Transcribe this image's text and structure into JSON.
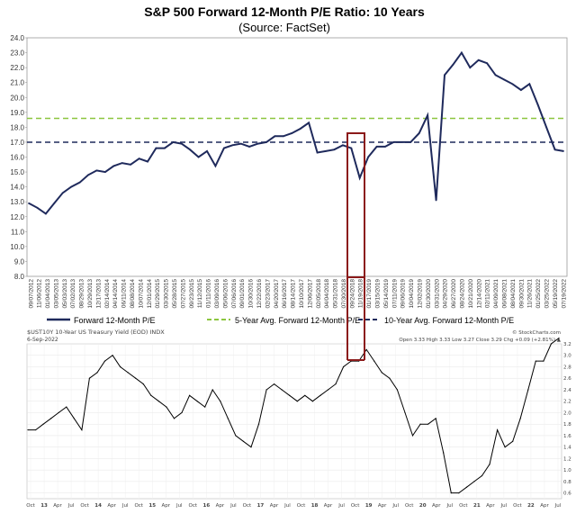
{
  "chart_data": [
    {
      "type": "line",
      "title": "S&P 500 Forward 12-Month P/E Ratio: 10 Years",
      "subtitle": "(Source: FactSet)",
      "ylim": [
        8.0,
        24.0
      ],
      "y_ticks": [
        "24.0",
        "23.0",
        "22.0",
        "21.0",
        "20.0",
        "19.0",
        "18.0",
        "17.0",
        "16.0",
        "15.0",
        "14.0",
        "13.0",
        "12.0",
        "11.0",
        "10.0",
        "9.0",
        "8.0"
      ],
      "x_ticks": [
        "09/07/2012",
        "11/06/2012",
        "01/04/2013",
        "03/05/2013",
        "05/03/2013",
        "07/02/2013",
        "08/29/2013",
        "10/29/2013",
        "12/17/2013",
        "02/14/2014",
        "04/14/2014",
        "06/11/2014",
        "08/08/2014",
        "10/07/2014",
        "12/01/2014",
        "01/29/2015",
        "03/30/2015",
        "05/28/2015",
        "07/27/2015",
        "09/23/2015",
        "11/12/2015",
        "01/11/2016",
        "03/09/2016",
        "05/06/2016",
        "07/06/2016",
        "09/01/2016",
        "10/30/2016",
        "12/22/2016",
        "02/23/2017",
        "04/20/2017",
        "06/16/2017",
        "08/14/2017",
        "10/10/2017",
        "12/06/2017",
        "02/05/2018",
        "04/04/2018",
        "05/31/2018",
        "07/30/2018",
        "09/24/2018",
        "11/19/2018",
        "01/17/2019",
        "03/15/2019",
        "05/14/2019",
        "07/11/2019",
        "09/06/2019",
        "10/04/2019",
        "12/02/2019",
        "01/30/2020",
        "03/31/2020",
        "04/29/2020",
        "06/27/2020",
        "08/24/2020",
        "10/21/2020",
        "12/14/2020",
        "02/11/2021",
        "04/09/2021",
        "06/08/2021",
        "08/04/2021",
        "09/30/2021",
        "11/26/2021",
        "01/25/2022",
        "03/25/2022",
        "05/19/2022",
        "07/19/2022"
      ],
      "series": [
        {
          "name": "Forward 12-Month P/E",
          "color": "#1f2a5c",
          "values": [
            12.9,
            12.6,
            12.2,
            12.9,
            13.6,
            14.0,
            14.3,
            14.8,
            15.1,
            15.0,
            15.4,
            15.6,
            15.5,
            15.9,
            15.7,
            16.6,
            16.6,
            17.0,
            16.9,
            16.5,
            16.0,
            16.4,
            15.4,
            16.6,
            16.8,
            16.9,
            16.7,
            16.9,
            17.0,
            17.4,
            17.4,
            17.6,
            17.9,
            18.3,
            16.3,
            16.4,
            16.5,
            16.8,
            16.6,
            14.6,
            16.0,
            16.7,
            16.7,
            17.0,
            17.0,
            17.0,
            17.6,
            18.8,
            13.1,
            21.5,
            22.2,
            23.0,
            22.0,
            22.5,
            22.3,
            21.5,
            21.2,
            20.9,
            20.5,
            20.9,
            19.5,
            18.0,
            16.5,
            16.4
          ]
        }
      ],
      "reference_lines": [
        {
          "name": "5-Year Avg. Forward 12-Month P/E",
          "value": 18.6,
          "color": "#8cc63f",
          "style": "dashed"
        },
        {
          "name": "10-Year Avg. Forward 12-Month P/E",
          "value": 17.0,
          "color": "#1f2a5c",
          "style": "dashed"
        }
      ],
      "legend": [
        "Forward 12-Month P/E",
        "5-Year Avg. Forward 12-Month P/E",
        "10-Year Avg. Forward 12-Month P/E"
      ],
      "grid": false,
      "legend_position": "bottom",
      "highlight_box": {
        "color": "#8b1a1a",
        "x_from": "07/30/2018",
        "x_to": "11/19/2018"
      }
    },
    {
      "type": "line",
      "title": "$UST10Y 10-Year US Treasury Yield (EOD) INDX",
      "date": "6-Sep-2022",
      "credit": "© StockCharts.com",
      "ohlc": "Open 3.33 High 3.33 Low 3.27 Close 3.29 Chg +0.09 (+2.81%) ▲",
      "ylim": [
        0.5,
        3.2
      ],
      "y_ticks": [
        "3.2",
        "3.0",
        "2.8",
        "2.6",
        "2.4",
        "2.2",
        "2.0",
        "1.8",
        "1.6",
        "1.4",
        "1.2",
        "1.0",
        "0.8",
        "0.6"
      ],
      "x_ticks": [
        "Oct",
        "13",
        "Apr",
        "Jul",
        "Oct",
        "14",
        "Apr",
        "Jul",
        "Oct",
        "15",
        "Apr",
        "Jul",
        "Oct",
        "16",
        "Apr",
        "Jul",
        "Oct",
        "17",
        "Apr",
        "Jul",
        "Oct",
        "18",
        "Apr",
        "Jul",
        "Oct",
        "19",
        "Apr",
        "Jul",
        "Oct",
        "20",
        "Apr",
        "Jul",
        "Oct",
        "21",
        "Apr",
        "Jul",
        "Oct",
        "22",
        "Apr",
        "Jul"
      ],
      "series": [
        {
          "name": "10-Year US Treasury Yield",
          "color": "#000000",
          "values": [
            1.7,
            1.7,
            1.8,
            1.9,
            2.0,
            2.1,
            1.9,
            1.7,
            2.6,
            2.7,
            2.9,
            3.0,
            2.8,
            2.7,
            2.6,
            2.5,
            2.3,
            2.2,
            2.1,
            1.9,
            2.0,
            2.3,
            2.2,
            2.1,
            2.4,
            2.2,
            1.9,
            1.6,
            1.5,
            1.4,
            1.8,
            2.4,
            2.5,
            2.4,
            2.3,
            2.2,
            2.3,
            2.2,
            2.3,
            2.4,
            2.5,
            2.8,
            2.9,
            2.9,
            3.1,
            2.9,
            2.7,
            2.6,
            2.4,
            2.0,
            1.6,
            1.8,
            1.8,
            1.9,
            1.3,
            0.6,
            0.6,
            0.7,
            0.8,
            0.9,
            1.1,
            1.7,
            1.4,
            1.5,
            1.9,
            2.4,
            2.9,
            2.9,
            3.2,
            3.3
          ]
        }
      ],
      "grid": true,
      "highlight_box": {
        "color": "#8b1a1a",
        "x_from": "Sep 2018",
        "x_to": "Dec 2018"
      }
    }
  ]
}
